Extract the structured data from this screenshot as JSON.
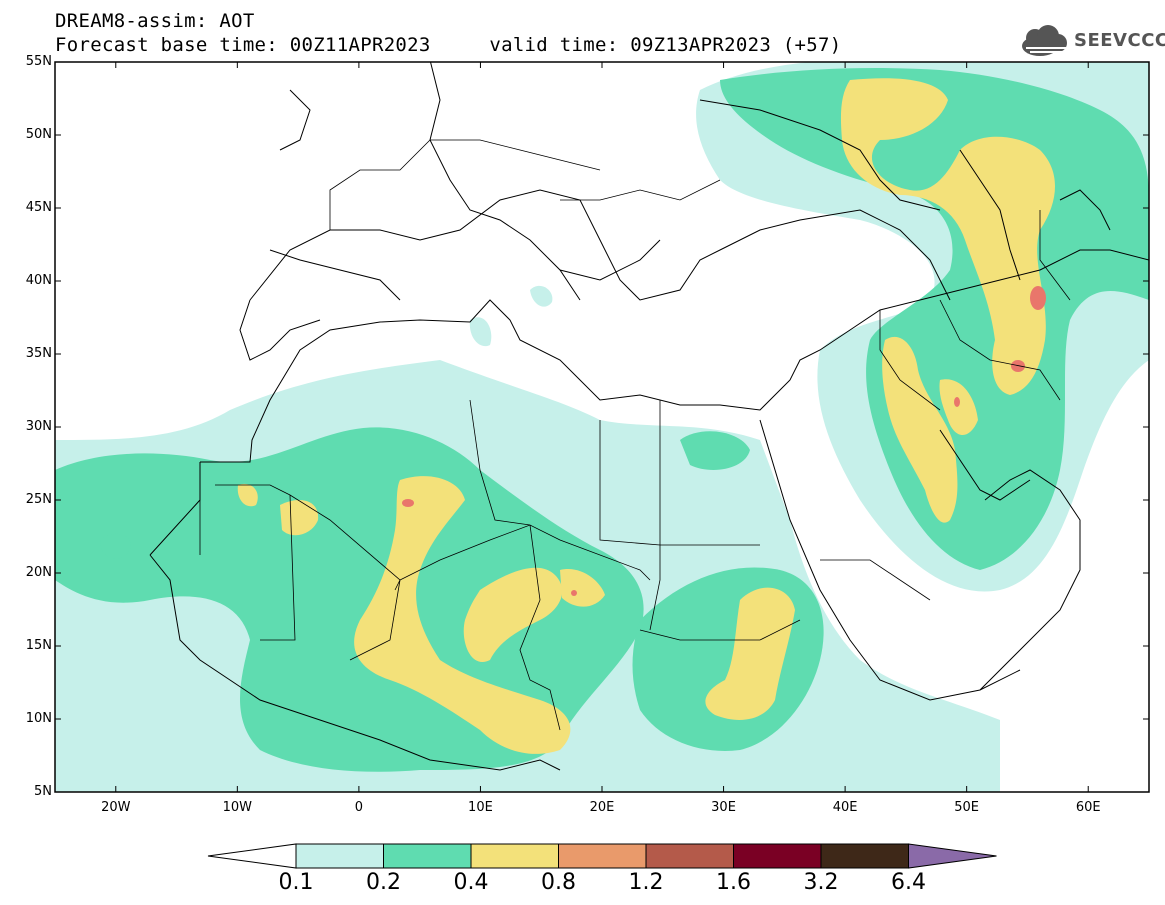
{
  "header": {
    "title_line1": "DREAM8-assim: AOT",
    "title_line2": "Forecast base time: 00Z11APR2023     valid time: 09Z13APR2023 (+57)",
    "logo_text": "SEEVCCC",
    "logo_icon": "cloud-icon"
  },
  "map": {
    "variable": "AOT",
    "lat_range": [
      5,
      55
    ],
    "lon_range": [
      -25,
      65
    ],
    "lat_ticks": [
      {
        "value": 55,
        "label": "55N"
      },
      {
        "value": 50,
        "label": "50N"
      },
      {
        "value": 45,
        "label": "45N"
      },
      {
        "value": 40,
        "label": "40N"
      },
      {
        "value": 35,
        "label": "35N"
      },
      {
        "value": 30,
        "label": "30N"
      },
      {
        "value": 25,
        "label": "25N"
      },
      {
        "value": 20,
        "label": "20N"
      },
      {
        "value": 15,
        "label": "15N"
      },
      {
        "value": 10,
        "label": "10N"
      },
      {
        "value": 5,
        "label": "5N"
      }
    ],
    "lon_ticks": [
      {
        "value": -20,
        "label": "20W"
      },
      {
        "value": -10,
        "label": "10W"
      },
      {
        "value": 0,
        "label": "0"
      },
      {
        "value": 10,
        "label": "10E"
      },
      {
        "value": 20,
        "label": "20E"
      },
      {
        "value": 30,
        "label": "30E"
      },
      {
        "value": 40,
        "label": "40E"
      },
      {
        "value": 50,
        "label": "50E"
      },
      {
        "value": 60,
        "label": "60E"
      }
    ]
  },
  "colorbar": {
    "levels": [
      "0.1",
      "0.2",
      "0.4",
      "0.8",
      "1.2",
      "1.6",
      "3.2",
      "6.4"
    ],
    "colors": [
      "#c6f0ea",
      "#5fdcb0",
      "#f3e17a",
      "#e99a6b",
      "#b45a4a",
      "#7a0024",
      "#3e2818",
      "#8a6aa8"
    ]
  }
}
